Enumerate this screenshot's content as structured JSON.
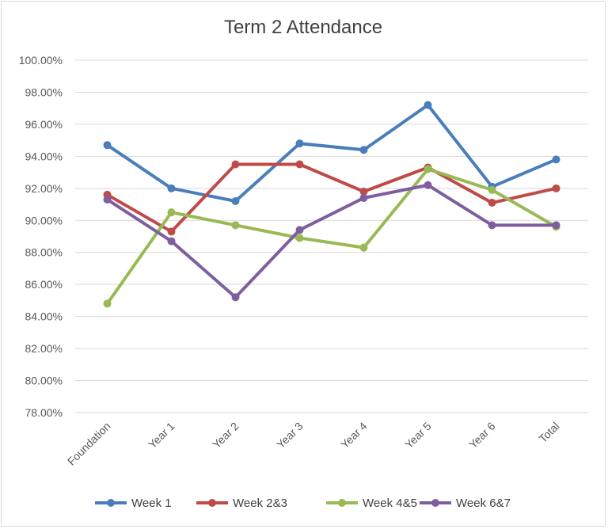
{
  "chart_data": {
    "type": "line",
    "title": "Term 2 Attendance",
    "xlabel": "",
    "ylabel": "",
    "categories": [
      "Foundation",
      "Year 1",
      "Year 2",
      "Year 3",
      "Year 4",
      "Year 5",
      "Year 6",
      "Total"
    ],
    "ylim": [
      0.78,
      1.0
    ],
    "y_ticks": [
      "78.00%",
      "80.00%",
      "82.00%",
      "84.00%",
      "86.00%",
      "88.00%",
      "90.00%",
      "92.00%",
      "94.00%",
      "96.00%",
      "98.00%",
      "100.00%"
    ],
    "grid": true,
    "legend_position": "bottom",
    "series": [
      {
        "name": "Week 1",
        "color": "#4a7ebb",
        "values": [
          0.947,
          0.92,
          0.912,
          0.948,
          0.944,
          0.972,
          0.921,
          0.938
        ]
      },
      {
        "name": "Week 2&3",
        "color": "#be4b48",
        "values": [
          0.916,
          0.893,
          0.935,
          0.935,
          0.918,
          0.933,
          0.911,
          0.92
        ]
      },
      {
        "name": "Week 4&5",
        "color": "#98b954",
        "values": [
          0.848,
          0.905,
          0.897,
          0.889,
          0.883,
          0.932,
          0.919,
          0.896
        ]
      },
      {
        "name": "Week 6&7",
        "color": "#7d5fa0",
        "values": [
          0.913,
          0.887,
          0.852,
          0.894,
          0.914,
          0.922,
          0.897,
          0.897
        ]
      }
    ]
  }
}
